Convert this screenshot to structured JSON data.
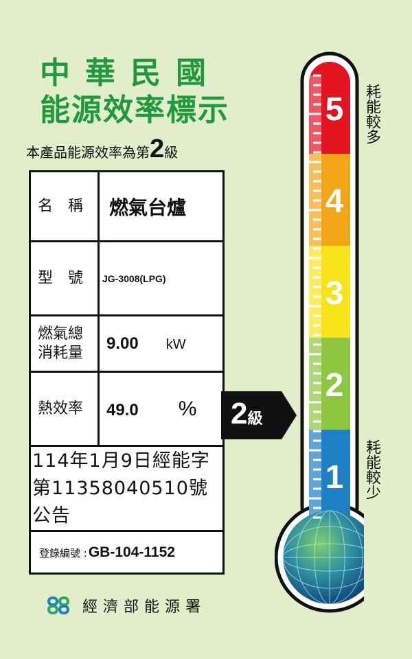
{
  "title": {
    "line1": "中華民國",
    "line2": "能源效率標示"
  },
  "grade_statement": {
    "prefix": "本產品能源效率為第",
    "grade": "2",
    "suffix": "級"
  },
  "table": {
    "name_label": "名　稱",
    "name_value": "燃氣台爐",
    "model_label": "型　號",
    "model_value": "JG-3008(LPG)",
    "consumption_label": "燃氣總\n消耗量",
    "consumption_value": "9.00",
    "consumption_unit": "kW",
    "efficiency_label": "熱效率",
    "efficiency_value": "49.0",
    "efficiency_unit": "%",
    "announcement_line1": "114年1月9日經能字",
    "announcement_line2": "第11358040510號公告",
    "registration_label": "登錄編號",
    "registration_value": "GB-104-1152"
  },
  "indicator": {
    "grade": "2",
    "suffix": "級"
  },
  "scale": {
    "levels": [
      {
        "label": "5",
        "color": "#e3141f"
      },
      {
        "label": "4",
        "color": "#f2a516"
      },
      {
        "label": "3",
        "color": "#f8e21a"
      },
      {
        "label": "2",
        "color": "#8dc63f"
      },
      {
        "label": "1",
        "color": "#1d7fc4"
      }
    ],
    "top_label": "耗能較多",
    "bottom_label": "耗能較少"
  },
  "footer": {
    "agency": "經濟部能源署"
  }
}
